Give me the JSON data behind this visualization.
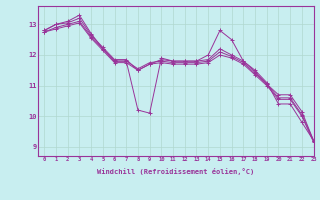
{
  "background_color": "#c8eef0",
  "grid_color": "#b0d8d0",
  "line_color": "#993399",
  "xlabel": "Windchill (Refroidissement éolien,°C)",
  "xlim": [
    -0.5,
    23
  ],
  "ylim": [
    8.7,
    13.6
  ],
  "xticks": [
    0,
    1,
    2,
    3,
    4,
    5,
    6,
    7,
    8,
    9,
    10,
    11,
    12,
    13,
    14,
    15,
    16,
    17,
    18,
    19,
    20,
    21,
    22,
    23
  ],
  "yticks": [
    9,
    10,
    11,
    12,
    13
  ],
  "series": [
    [
      12.8,
      13.0,
      13.1,
      13.3,
      12.7,
      12.2,
      11.8,
      11.8,
      10.2,
      10.1,
      11.9,
      11.8,
      11.8,
      11.8,
      12.0,
      12.8,
      12.5,
      11.8,
      11.5,
      11.1,
      10.4,
      10.4,
      9.8,
      9.2
    ],
    [
      12.8,
      13.0,
      13.05,
      13.2,
      12.65,
      12.25,
      11.85,
      11.85,
      11.5,
      11.7,
      11.85,
      11.8,
      11.8,
      11.8,
      11.85,
      12.2,
      12.0,
      11.8,
      11.45,
      11.05,
      10.7,
      10.7,
      10.15,
      9.2
    ],
    [
      12.75,
      12.9,
      13.0,
      13.1,
      12.6,
      12.2,
      11.8,
      11.8,
      11.55,
      11.75,
      11.8,
      11.75,
      11.75,
      11.75,
      11.8,
      12.1,
      11.95,
      11.75,
      11.4,
      11.05,
      10.6,
      10.6,
      10.05,
      9.2
    ],
    [
      12.75,
      12.85,
      12.95,
      13.05,
      12.55,
      12.15,
      11.75,
      11.75,
      11.5,
      11.7,
      11.75,
      11.7,
      11.7,
      11.7,
      11.75,
      12.0,
      11.9,
      11.7,
      11.35,
      11.0,
      10.55,
      10.55,
      10.0,
      9.15
    ]
  ]
}
